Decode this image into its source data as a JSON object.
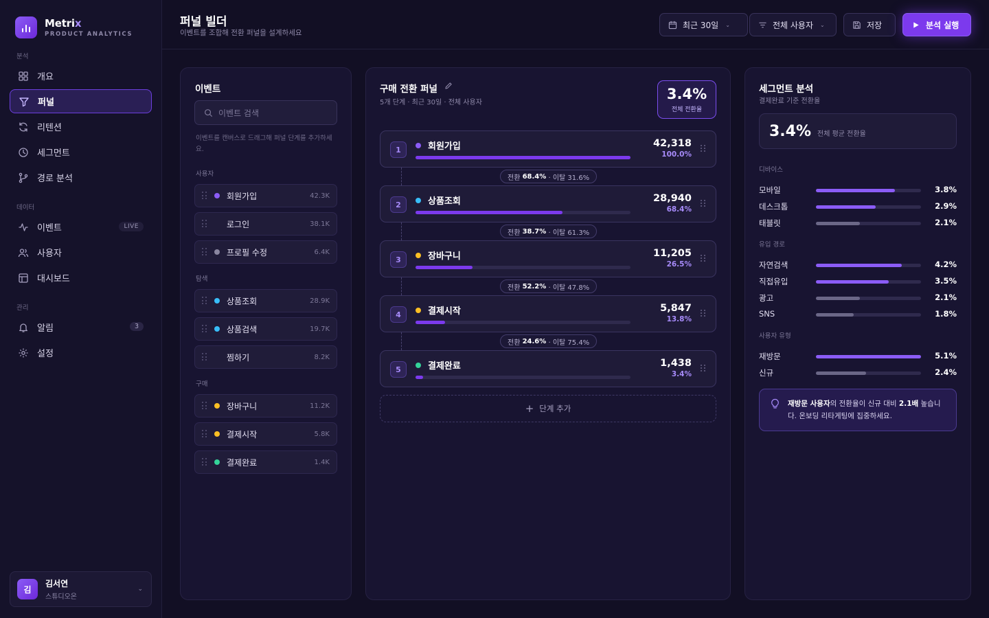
{
  "brand": {
    "name": "Metri",
    "name_accent": "x",
    "subtitle": "PRODUCT ANALYTICS"
  },
  "sidebar": {
    "sections": [
      {
        "label": "분석"
      },
      {
        "label": "데이터"
      },
      {
        "label": "관리"
      }
    ],
    "items": [
      {
        "label": "개요",
        "icon": "grid-icon"
      },
      {
        "label": "퍼널",
        "icon": "funnel-icon",
        "active": true
      },
      {
        "label": "리텐션",
        "icon": "refresh-icon"
      },
      {
        "label": "세그먼트",
        "icon": "pie-icon"
      },
      {
        "label": "경로 분석",
        "icon": "path-icon"
      },
      {
        "label": "이벤트",
        "icon": "activity-icon",
        "badge": "LIVE"
      },
      {
        "label": "사용자",
        "icon": "users-icon"
      },
      {
        "label": "대시보드",
        "icon": "layout-icon"
      },
      {
        "label": "알림",
        "icon": "bell-icon",
        "badge": "3"
      },
      {
        "label": "설정",
        "icon": "gear-icon"
      }
    ],
    "user": {
      "initial": "김",
      "name": "김서연",
      "team": "스튜디오온"
    }
  },
  "header": {
    "title": "퍼널 빌더",
    "subtitle": "이벤트를 조합해 전환 퍼널을 설계하세요",
    "date_filter": "최근 30일",
    "user_filter": "전체 사용자",
    "save": "저장",
    "run": "분석 실행"
  },
  "events_panel": {
    "title": "이벤트",
    "search_placeholder": "이벤트 검색",
    "hint": "이벤트를 캔버스로 드래그해 퍼널 단계를 추가하세요.",
    "groups": [
      {
        "label": "사용자",
        "items": [
          {
            "name": "회원가입",
            "count": "42.3K",
            "color": "#8b5cf6"
          },
          {
            "name": "로그인",
            "count": "38.1K",
            "color": ""
          },
          {
            "name": "프로필 수정",
            "count": "6.4K",
            "color": "#8a86a0"
          }
        ]
      },
      {
        "label": "탐색",
        "items": [
          {
            "name": "상품조회",
            "count": "28.9K",
            "color": "#38bdf8"
          },
          {
            "name": "상품검색",
            "count": "19.7K",
            "color": "#38bdf8"
          },
          {
            "name": "찜하기",
            "count": "8.2K",
            "color": ""
          }
        ]
      },
      {
        "label": "구매",
        "items": [
          {
            "name": "장바구니",
            "count": "11.2K",
            "color": "#fbbf24"
          },
          {
            "name": "결제시작",
            "count": "5.8K",
            "color": "#fbbf24"
          },
          {
            "name": "결제완료",
            "count": "1.4K",
            "color": "#34d399"
          }
        ]
      }
    ]
  },
  "funnel": {
    "title": "구매 전환 퍼널",
    "subtitle": "5개 단계 · 최근 30일 · 전체 사용자",
    "overall_rate": "3.4%",
    "overall_label": "전체 전환율",
    "steps": [
      {
        "num": "1",
        "name": "회원가입",
        "count": "42,318",
        "pct": "100.0%",
        "fill": 1.0,
        "color": "#8b5cf6"
      },
      {
        "num": "2",
        "name": "상품조회",
        "count": "28,940",
        "pct": "68.4%",
        "fill": 0.684,
        "color": "#38bdf8"
      },
      {
        "num": "3",
        "name": "장바구니",
        "count": "11,205",
        "pct": "26.5%",
        "fill": 0.265,
        "color": "#fbbf24"
      },
      {
        "num": "4",
        "name": "결제시작",
        "count": "5,847",
        "pct": "13.8%",
        "fill": 0.138,
        "color": "#fbbf24"
      },
      {
        "num": "5",
        "name": "결제완료",
        "count": "1,438",
        "pct": "3.4%",
        "fill": 0.034,
        "color": "#34d399"
      }
    ],
    "transitions": [
      {
        "label_conv": "전환",
        "conv": "68.4%",
        "label_drop": "· 이탈 31.6%"
      },
      {
        "label_conv": "전환",
        "conv": "38.7%",
        "label_drop": "· 이탈 61.3%"
      },
      {
        "label_conv": "전환",
        "conv": "52.2%",
        "label_drop": "· 이탈 47.8%"
      },
      {
        "label_conv": "전환",
        "conv": "24.6%",
        "label_drop": "· 이탈 75.4%"
      }
    ],
    "add_step": "단계 추가"
  },
  "segments": {
    "title": "세그먼트 분석",
    "subtitle": "결제완료 기준 전환율",
    "avg_value": "3.4%",
    "avg_label": "전체 평균 전환율",
    "groups": [
      {
        "label": "디바이스",
        "rows": [
          {
            "name": "모바일",
            "value": "3.8%",
            "fill": 0.75,
            "color": "#8b5cf6"
          },
          {
            "name": "데스크톱",
            "value": "2.9%",
            "fill": 0.57,
            "color": "#8b5cf6"
          },
          {
            "name": "태블릿",
            "value": "2.1%",
            "fill": 0.42,
            "color": "#6b6787"
          }
        ]
      },
      {
        "label": "유입 경로",
        "rows": [
          {
            "name": "자연검색",
            "value": "4.2%",
            "fill": 0.82,
            "color": "#8b5cf6"
          },
          {
            "name": "직접유입",
            "value": "3.5%",
            "fill": 0.69,
            "color": "#8b5cf6"
          },
          {
            "name": "광고",
            "value": "2.1%",
            "fill": 0.42,
            "color": "#6b6787"
          },
          {
            "name": "SNS",
            "value": "1.8%",
            "fill": 0.36,
            "color": "#6b6787"
          }
        ]
      },
      {
        "label": "사용자 유형",
        "rows": [
          {
            "name": "재방문",
            "value": "5.1%",
            "fill": 1.0,
            "color": "#8b5cf6"
          },
          {
            "name": "신규",
            "value": "2.4%",
            "fill": 0.48,
            "color": "#6b6787"
          }
        ]
      }
    ],
    "insight": {
      "strong1": "재방문 사용자",
      "text1": "의 전환율이 신규 대비 ",
      "strong2": "2.1배",
      "text2": " 높습니다. 온보딩 리타게팅에 집중하세요."
    }
  }
}
